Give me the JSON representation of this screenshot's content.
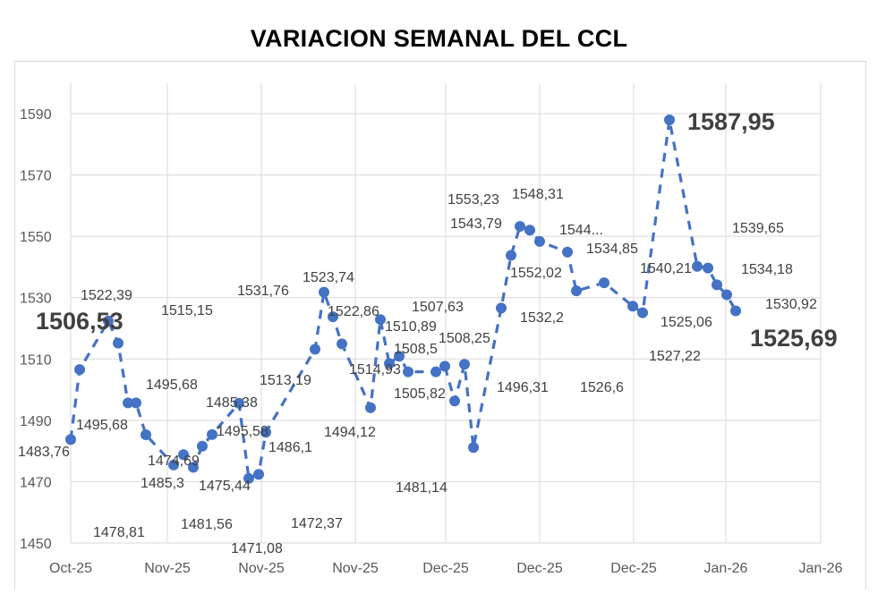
{
  "chart_data": {
    "type": "line",
    "title": "VARIACION SEMANAL DEL CCL",
    "xlabel": "",
    "ylabel": "",
    "ylim": [
      1450,
      1600
    ],
    "y_ticks": [
      "1450",
      "1470",
      "1490",
      "1510",
      "1530",
      "1550",
      "1570",
      "1590"
    ],
    "x_ticks": [
      "Oct-25",
      "Nov-25",
      "Nov-25",
      "Nov-25",
      "Dec-25",
      "Dec-25",
      "Dec-25",
      "Jan-26",
      "Jan-26"
    ],
    "grid": true,
    "legend": "none",
    "line_style": "dashed",
    "series_color": "#4472C4",
    "values": [
      1483.76,
      1506.53,
      1522.39,
      1515.15,
      1495.68,
      1495.68,
      1485.3,
      1475.44,
      1478.81,
      1474.69,
      1481.56,
      1485.38,
      1495.58,
      1471.08,
      1472.37,
      1486.1,
      1513.19,
      1531.76,
      1523.74,
      1514.93,
      1494.12,
      1522.86,
      1508.5,
      1510.89,
      1505.82,
      1505.8,
      1507.63,
      1496.31,
      1508.25,
      1481.14,
      1526.6,
      1543.79,
      1553.23,
      1552.02,
      1548.31,
      1544.85,
      1532.2,
      1534.85,
      1527.22,
      1525.06,
      1587.95,
      1540.21,
      1539.65,
      1534.18,
      1530.92,
      1525.69
    ],
    "data_labels": [
      "1483,76",
      "1506,53",
      "1522,39",
      "1515,15",
      "1495,68",
      "1495,68",
      "1485,3",
      "1475,44",
      "1478,81",
      "1474,69",
      "1481,56",
      "1485,38",
      "1495,58",
      "1471,08",
      "1472,37",
      "1486,1",
      "1513,19",
      "1531,76",
      "1523,74",
      "1514,93",
      "1494,12",
      "1522,86",
      "1508,5",
      "1510,89",
      "1505,82",
      "",
      "1507,63",
      "1496,31",
      "1508,25",
      "1481,14",
      "1526,6",
      "1543,79",
      "1553,23",
      "1552,02",
      "1548,31",
      "1544...",
      "1532,2",
      "1534,85",
      "1527,22",
      "1525,06",
      "1587,95",
      "1540,21",
      "1539,65",
      "1534,18",
      "1530,92",
      "1525,69"
    ]
  }
}
